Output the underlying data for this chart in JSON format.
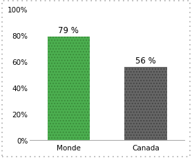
{
  "categories": [
    "Monde",
    "Canada"
  ],
  "values": [
    79,
    56
  ],
  "bar_colors": [
    "#4CAF50",
    "#666666"
  ],
  "bar_hatch_colors": [
    "#3a8c3a",
    "#444444"
  ],
  "bar_labels": [
    "79 %",
    "56 %"
  ],
  "ylim": [
    0,
    100
  ],
  "yticks": [
    0,
    20,
    40,
    60,
    80,
    100
  ],
  "ytick_labels": [
    "0%",
    "20%",
    "40%",
    "60%",
    "80%",
    "100%"
  ],
  "background_color": "#ffffff",
  "label_fontsize": 8.5,
  "tick_fontsize": 7.5,
  "bar_width": 0.55,
  "bar_spacing": [
    0.0,
    1.0
  ]
}
